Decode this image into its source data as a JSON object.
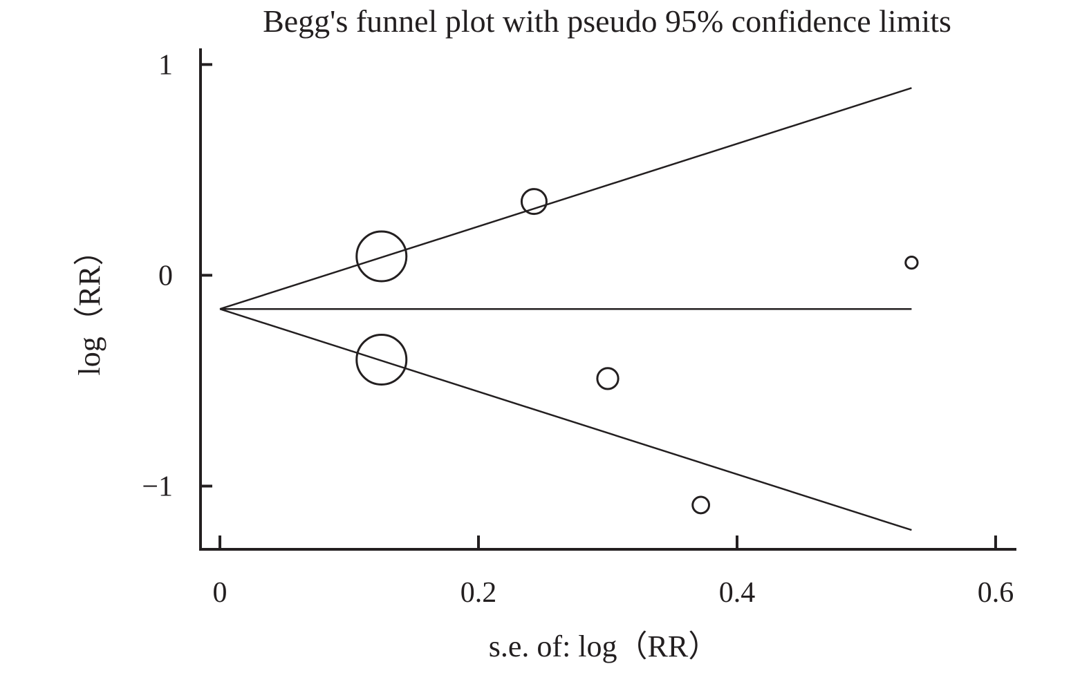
{
  "chart_data": {
    "type": "scatter",
    "title": "Begg's funnel plot with pseudo 95% confidence limits",
    "xlabel": "s.e. of: log（RR）",
    "ylabel": "log（RR）",
    "xlim": [
      -0.015,
      0.615
    ],
    "ylim": [
      -1.3,
      1.07
    ],
    "xticks": [
      {
        "value": 0,
        "label": "0"
      },
      {
        "value": 0.2,
        "label": "0.2"
      },
      {
        "value": 0.4,
        "label": "0.4"
      },
      {
        "value": 0.6,
        "label": "0.6"
      }
    ],
    "yticks": [
      {
        "value": 1,
        "label": "1"
      },
      {
        "value": 0,
        "label": "0"
      },
      {
        "value": -1,
        "label": "−1"
      }
    ],
    "pooled_estimate": -0.16,
    "funnel_x_max": 0.535,
    "points": [
      {
        "x": 0.125,
        "y": 0.09,
        "weight": 1.0
      },
      {
        "x": 0.125,
        "y": -0.4,
        "weight": 1.0
      },
      {
        "x": 0.243,
        "y": 0.35,
        "weight": 0.5
      },
      {
        "x": 0.3,
        "y": -0.49,
        "weight": 0.42
      },
      {
        "x": 0.372,
        "y": -1.09,
        "weight": 0.33
      },
      {
        "x": 0.535,
        "y": 0.06,
        "weight": 0.24
      }
    ],
    "legend": "none",
    "grid": false
  }
}
